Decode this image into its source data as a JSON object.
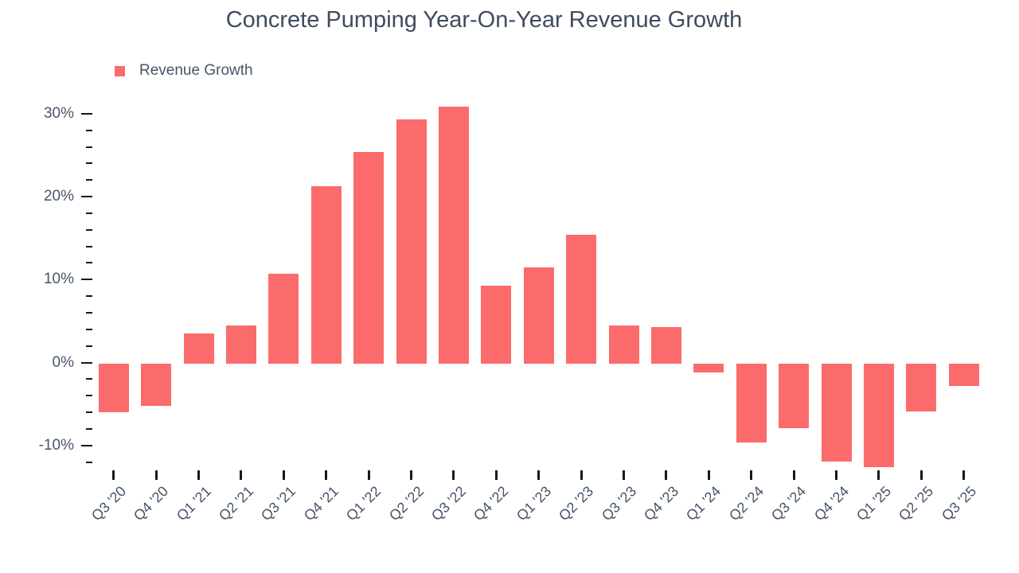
{
  "colors": {
    "bar": "#fb6b6b",
    "text": "#475569",
    "title": "#3f4c5f",
    "axis_tick": "#16181d",
    "background": "#ffffff"
  },
  "chart_data": {
    "type": "bar",
    "title": "Concrete Pumping Year-On-Year Revenue Growth",
    "categories": [
      "Q3 '20",
      "Q4 '20",
      "Q1 '21",
      "Q2 '21",
      "Q3 '21",
      "Q4 '21",
      "Q1 '22",
      "Q2 '22",
      "Q3 '22",
      "Q4 '22",
      "Q1 '23",
      "Q2 '23",
      "Q3 '23",
      "Q4 '23",
      "Q1 '24",
      "Q2 '24",
      "Q3 '24",
      "Q4 '24",
      "Q1 '25",
      "Q2 '25",
      "Q3 '25"
    ],
    "series": [
      {
        "name": "Revenue Growth",
        "values": [
          -5.9,
          -5.1,
          3.5,
          4.5,
          10.7,
          21.3,
          25.4,
          29.3,
          30.9,
          9.3,
          11.5,
          15.4,
          4.5,
          4.3,
          -1.1,
          -9.5,
          -7.8,
          -11.8,
          -12.5,
          -5.8,
          -2.7
        ]
      }
    ],
    "xlabel": "",
    "ylabel": "",
    "ylim": [
      -13,
      31.5
    ],
    "y_axis": {
      "major_ticks": [
        30,
        20,
        10,
        0,
        -10
      ],
      "major_labels": [
        "30%",
        "20%",
        "10%",
        "0%",
        "-10%"
      ],
      "minor_step": 2,
      "max": 30,
      "min": -12,
      "unit": "%"
    },
    "grid": false,
    "legend_position": "top-left",
    "x_tick_rotation": -45,
    "bar_color": "#fb6b6b"
  }
}
